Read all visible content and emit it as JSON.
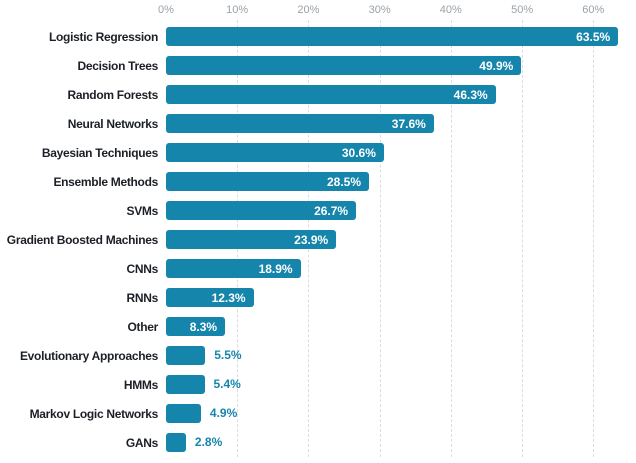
{
  "chart_data": {
    "type": "bar",
    "orientation": "horizontal",
    "title": "",
    "xlabel": "",
    "ylabel": "",
    "categories": [
      "Logistic Regression",
      "Decision Trees",
      "Random Forests",
      "Neural Networks",
      "Bayesian Techniques",
      "Ensemble Methods",
      "SVMs",
      "Gradient Boosted Machines",
      "CNNs",
      "RNNs",
      "Other",
      "Evolutionary Approaches",
      "HMMs",
      "Markov Logic Networks",
      "GANs"
    ],
    "values": [
      63.5,
      49.9,
      46.3,
      37.6,
      30.6,
      28.5,
      26.7,
      23.9,
      18.9,
      12.3,
      8.3,
      5.5,
      5.4,
      4.9,
      2.8
    ],
    "value_labels": [
      "63.5%",
      "49.9%",
      "46.3%",
      "37.6%",
      "30.6%",
      "28.5%",
      "26.7%",
      "23.9%",
      "18.9%",
      "12.3%",
      "8.3%",
      "5.5%",
      "5.4%",
      "4.9%",
      "2.8%"
    ],
    "x_ticks": [
      "0%",
      "10%",
      "20%",
      "30%",
      "40%",
      "50%",
      "60%"
    ],
    "x_tick_values": [
      0,
      10,
      20,
      30,
      40,
      50,
      60
    ],
    "xlim": [
      0,
      66
    ],
    "grid": "vertical-dashed",
    "legend": "none",
    "colors": {
      "bar": "#1585ac",
      "value_label_inside": "#ffffff",
      "value_label_outside": "#1585ac",
      "axis_tick": "#9aa2a9",
      "category_label": "#1c2026",
      "gridline": "#d9dde0",
      "background": "#ffffff"
    }
  }
}
